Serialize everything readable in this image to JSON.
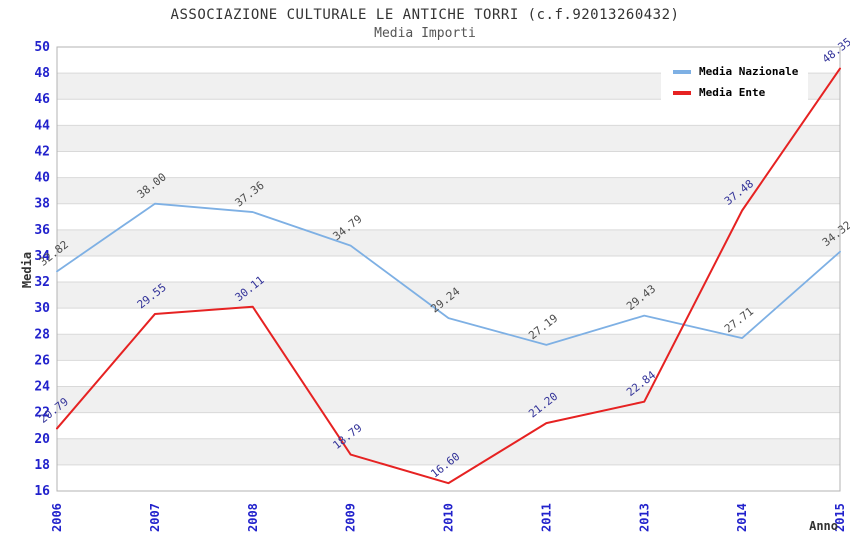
{
  "header": {
    "title": "ASSOCIAZIONE CULTURALE LE ANTICHE TORRI (c.f.92013260432)",
    "subtitle": "Media Importi"
  },
  "chart_data": {
    "type": "line",
    "title": "ASSOCIAZIONE CULTURALE LE ANTICHE TORRI (c.f.92013260432)",
    "subtitle": "Media Importi",
    "categories": [
      "2006",
      "2007",
      "2008",
      "2009",
      "2010",
      "2011",
      "2013",
      "2014",
      "2015"
    ],
    "series": [
      {
        "name": "Media Nazionale",
        "color": "#7EB0E4",
        "label_color": "#4D4D4D",
        "line_width": 1.8,
        "values": [
          32.82,
          38.0,
          37.36,
          34.79,
          29.24,
          27.19,
          29.43,
          27.71,
          34.32
        ]
      },
      {
        "name": "Media Ente",
        "color": "#E62222",
        "label_color": "#333399",
        "line_width": 2,
        "values": [
          20.79,
          29.55,
          30.11,
          18.79,
          16.6,
          21.2,
          22.84,
          37.48,
          48.35
        ]
      }
    ],
    "xlabel": "Anno",
    "ylabel": "Media",
    "ylim": [
      16,
      50
    ],
    "ytick_step": 2,
    "grid": {
      "band_colors": [
        "#ffffff",
        "#f0f0f0"
      ],
      "line_color": "#d9d9d9",
      "border_color": "#b3b3b3"
    },
    "axis_tick_color": "#2222CC",
    "legend_position": "top-right"
  }
}
